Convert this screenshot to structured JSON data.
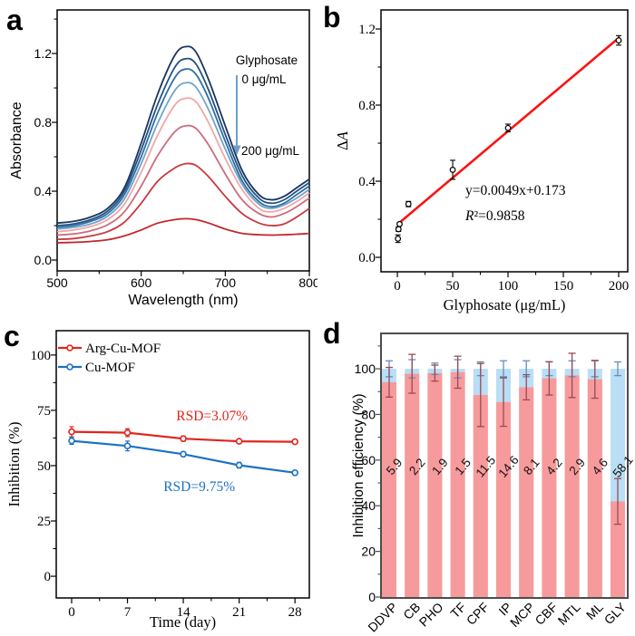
{
  "panel_letters": {
    "a": "a",
    "b": "b",
    "c": "c",
    "d": "d"
  },
  "colors": {
    "background": "#ffffff"
  },
  "chart_data": [
    {
      "id": "a",
      "type": "line",
      "xlabel": "Wavelength (nm)",
      "ylabel": "Absorbance",
      "xlim": [
        500,
        800
      ],
      "ylim": [
        -0.063,
        1.453
      ],
      "xticks": [
        500,
        600,
        700,
        800
      ],
      "xtick_labels": [
        "500",
        "600",
        "700",
        "800"
      ],
      "xminor": [
        550,
        650,
        750
      ],
      "yticks": [
        0,
        0.4,
        0.8,
        1.2
      ],
      "ytick_labels": [
        "0.0",
        "0.4",
        "0.8",
        "1.2"
      ],
      "yminor": [
        0.2,
        0.6,
        1.0,
        1.4
      ],
      "x": [
        500,
        520,
        540,
        560,
        580,
        600,
        620,
        640,
        653,
        665,
        680,
        700,
        720,
        740,
        755,
        770,
        785,
        800
      ],
      "series": [
        {
          "color": "#1a355e",
          "y": [
            0.215,
            0.225,
            0.25,
            0.3,
            0.42,
            0.68,
            0.97,
            1.19,
            1.24,
            1.21,
            1.05,
            0.78,
            0.52,
            0.38,
            0.35,
            0.37,
            0.42,
            0.47
          ]
        },
        {
          "color": "#235181",
          "y": [
            0.2,
            0.21,
            0.235,
            0.285,
            0.4,
            0.64,
            0.91,
            1.12,
            1.17,
            1.14,
            0.99,
            0.73,
            0.49,
            0.36,
            0.33,
            0.35,
            0.4,
            0.45
          ]
        },
        {
          "color": "#2f6fa3",
          "y": [
            0.19,
            0.2,
            0.225,
            0.27,
            0.38,
            0.6,
            0.86,
            1.06,
            1.11,
            1.08,
            0.94,
            0.69,
            0.46,
            0.34,
            0.31,
            0.33,
            0.38,
            0.43
          ]
        },
        {
          "color": "#71a3c9",
          "y": [
            0.18,
            0.19,
            0.21,
            0.255,
            0.355,
            0.56,
            0.8,
            0.985,
            1.03,
            1.005,
            0.875,
            0.645,
            0.44,
            0.325,
            0.3,
            0.32,
            0.36,
            0.41
          ]
        },
        {
          "color": "#f3a6a3",
          "y": [
            0.165,
            0.175,
            0.195,
            0.235,
            0.325,
            0.51,
            0.73,
            0.9,
            0.94,
            0.92,
            0.8,
            0.59,
            0.41,
            0.3,
            0.28,
            0.3,
            0.34,
            0.39
          ]
        },
        {
          "color": "#cb6d7f",
          "y": [
            0.145,
            0.152,
            0.17,
            0.205,
            0.28,
            0.43,
            0.61,
            0.745,
            0.78,
            0.765,
            0.67,
            0.5,
            0.35,
            0.27,
            0.25,
            0.27,
            0.31,
            0.36
          ]
        },
        {
          "color": "#c8383f",
          "y": [
            0.12,
            0.125,
            0.14,
            0.165,
            0.22,
            0.33,
            0.46,
            0.535,
            0.56,
            0.55,
            0.485,
            0.37,
            0.27,
            0.215,
            0.2,
            0.21,
            0.25,
            0.3
          ]
        },
        {
          "color": "#c2262e",
          "y": [
            0.1,
            0.103,
            0.108,
            0.118,
            0.14,
            0.175,
            0.215,
            0.235,
            0.24,
            0.235,
            0.215,
            0.18,
            0.155,
            0.147,
            0.145,
            0.147,
            0.15,
            0.155
          ]
        }
      ],
      "annotation": {
        "title": "Glyphosate",
        "start_label": "0 μg/mL",
        "end_label": "200 μg/mL",
        "arrow_color": "#6f9fc9"
      }
    },
    {
      "id": "b",
      "type": "scatter",
      "xlabel": "Glyphosate (μg/mL)",
      "ylabel": "Δ*A*",
      "xlim": [
        -14.8,
        208.2
      ],
      "ylim": [
        -0.076,
        1.3
      ],
      "xticks": [
        0,
        50,
        100,
        150,
        200
      ],
      "xtick_labels": [
        "0",
        "50",
        "100",
        "150",
        "200"
      ],
      "xminor": [
        25,
        75,
        125,
        175
      ],
      "yticks": [
        0,
        0.4,
        0.8,
        1.2
      ],
      "ytick_labels": [
        "0.0",
        "0.4",
        "0.8",
        "1.2"
      ],
      "yminor": [
        0.2,
        0.6,
        1.0
      ],
      "points": [
        {
          "x": 0.5,
          "y": 0.098,
          "err": 0.02
        },
        {
          "x": 1,
          "y": 0.148,
          "err": 0.012
        },
        {
          "x": 2,
          "y": 0.175,
          "err": 0.008
        },
        {
          "x": 10,
          "y": 0.28,
          "err": 0.014
        },
        {
          "x": 50,
          "y": 0.46,
          "err": 0.05
        },
        {
          "x": 100,
          "y": 0.68,
          "err": 0.02
        },
        {
          "x": 200,
          "y": 1.14,
          "err": 0.025
        }
      ],
      "fit": {
        "slope": 0.0049,
        "intercept": 0.173,
        "x_start": 0,
        "x_end": 201,
        "color": "#fb1310"
      },
      "equation": "y=0.0049x+0.173",
      "r_squared": "*R*²=0.9858"
    },
    {
      "id": "c",
      "type": "line",
      "xlabel": "Time (day)",
      "ylabel": "Inhibition (%)",
      "xlim": [
        -1.93,
        29.8
      ],
      "ylim": [
        -9.8,
        111
      ],
      "xticks": [
        0,
        7,
        14,
        21,
        28
      ],
      "xtick_labels": [
        "0",
        "7",
        "14",
        "21",
        "28"
      ],
      "xminor": [
        3.5,
        10.5,
        17.5,
        24.5
      ],
      "yticks": [
        0,
        25,
        50,
        75,
        100
      ],
      "ytick_labels": [
        "0",
        "25",
        "50",
        "75",
        "100"
      ],
      "yminor": [
        12.5,
        37.5,
        62.5,
        87.5
      ],
      "x": [
        0,
        7,
        14,
        21,
        28
      ],
      "series": [
        {
          "name": "Arg-Cu-MOF",
          "color": "#e1251c",
          "y": [
            65.3,
            64.9,
            62.2,
            61,
            60.8
          ],
          "err": [
            2.3,
            1.8,
            1.2,
            0.8,
            0.7
          ],
          "rsd_label": "RSD=3.07%",
          "rsd_x": 17.6,
          "rsd_y": 70.5
        },
        {
          "name": "Cu-MOF",
          "color": "#1d71c1",
          "y": [
            61.2,
            58.9,
            55.2,
            50.2,
            46.8
          ],
          "err": [
            1.6,
            2.2,
            1.1,
            1.3,
            0.8
          ],
          "rsd_label": "RSD=9.75%",
          "rsd_x": 16,
          "rsd_y": 38.5
        }
      ]
    },
    {
      "id": "d",
      "type": "bar",
      "ylabel": "Inhibition efficiency (%)",
      "xlim": [
        0,
        1
      ],
      "ylim": [
        -0.4,
        115.5
      ],
      "yticks": [
        0,
        20,
        40,
        60,
        80,
        100
      ],
      "ytick_labels": [
        "0",
        "20",
        "40",
        "60",
        "80",
        "100"
      ],
      "yminor": [
        10,
        30,
        50,
        70,
        90,
        110
      ],
      "categories": [
        "DDVP",
        "CB",
        "PHO",
        "TF",
        "CPF",
        "IP",
        "MCP",
        "CBF",
        "MTL",
        "ML",
        "GLY"
      ],
      "series": [
        {
          "name": "blue",
          "bar_color": "#b9def5",
          "err_color": "#638fb8",
          "values": [
            100,
            100,
            100,
            100,
            100,
            100,
            100,
            100,
            100,
            100,
            100
          ],
          "errs": [
            3.5,
            4,
            2.5,
            4,
            3,
            3.5,
            3.5,
            3,
            3.5,
            3.5,
            3
          ]
        },
        {
          "name": "pink",
          "bar_color": "#f79a9c",
          "err_color": "#9a4a55",
          "values": [
            94.1,
            97.8,
            98.1,
            98.5,
            88.5,
            85.4,
            91.9,
            95.8,
            97.1,
            95.4,
            41.9
          ],
          "errs": [
            6.5,
            8.5,
            3.5,
            7,
            13.8,
            10.6,
            5.5,
            7.3,
            9.7,
            8.3,
            10
          ]
        }
      ],
      "bar_labels": [
        "5.9",
        "2.2",
        "1.9",
        "1.5",
        "11.5",
        "14.6",
        "8.1",
        "4.2",
        "2.9",
        "4.6",
        "58.1"
      ],
      "bar_label_y": 57
    }
  ]
}
